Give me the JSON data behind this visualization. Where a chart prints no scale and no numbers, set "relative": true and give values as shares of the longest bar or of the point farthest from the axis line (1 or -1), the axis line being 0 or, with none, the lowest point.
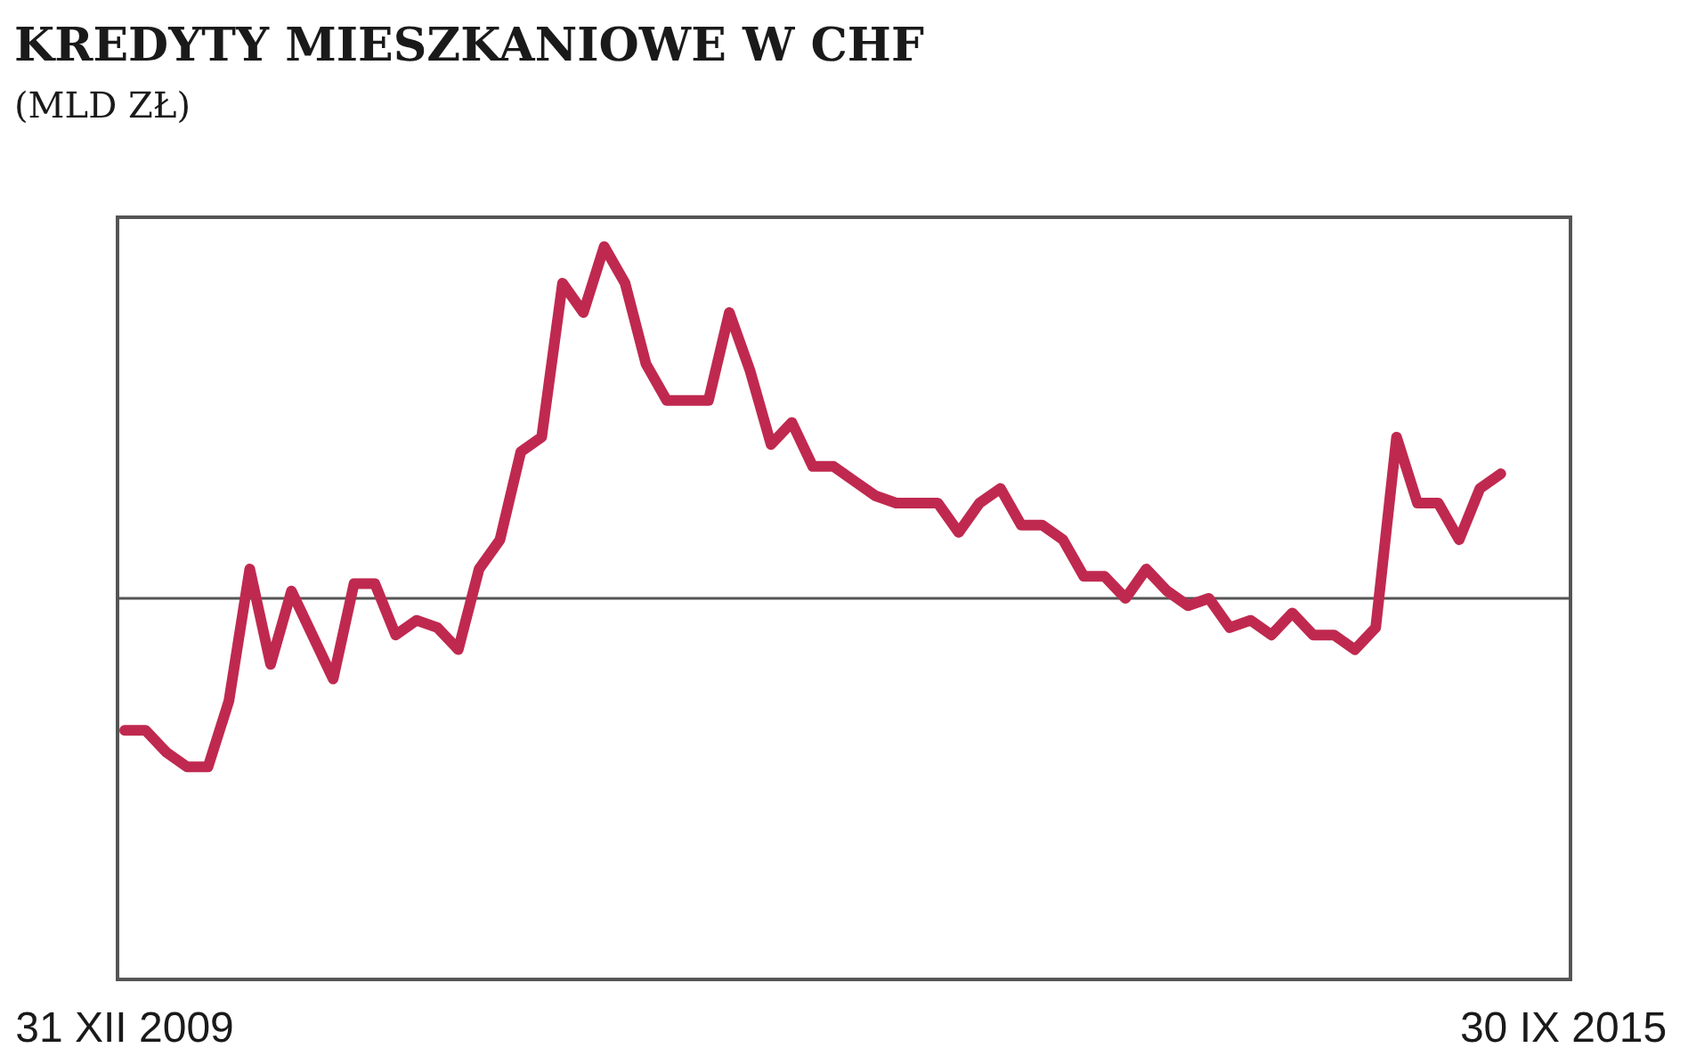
{
  "chart_data": {
    "type": "line",
    "title": "KREDYTY MIESZKANIOWE W CHF",
    "subtitle": "(MLD ZŁ)",
    "categories": [
      "31 XII 2009",
      null,
      null,
      null,
      null,
      null,
      null,
      null,
      null,
      null,
      null,
      null,
      null,
      null,
      null,
      null,
      null,
      null,
      null,
      null,
      null,
      null,
      null,
      null,
      null,
      null,
      null,
      null,
      null,
      null,
      null,
      null,
      null,
      null,
      null,
      null,
      null,
      null,
      null,
      null,
      null,
      null,
      null,
      null,
      null,
      null,
      null,
      null,
      null,
      null,
      null,
      null,
      null,
      null,
      null,
      null,
      null,
      null,
      null,
      null,
      null,
      null,
      null,
      null,
      null,
      null,
      null,
      null,
      null,
      "30 IX 2015"
    ],
    "series": [
      {
        "color": "#c0294f",
        "values": [
          0.34,
          0.34,
          0.31,
          0.29,
          0.29,
          0.38,
          0.56,
          0.43,
          0.53,
          0.47,
          0.41,
          0.54,
          0.54,
          0.47,
          0.49,
          0.48,
          0.45,
          0.56,
          0.6,
          0.72,
          0.74,
          0.95,
          0.91,
          1,
          0.95,
          0.84,
          0.79,
          0.79,
          0.79,
          0.91,
          0.83,
          0.73,
          0.76,
          0.7,
          0.7,
          0.68,
          0.66,
          0.65,
          0.65,
          0.65,
          0.61,
          0.65,
          0.67,
          0.62,
          0.62,
          0.6,
          0.55,
          0.55,
          0.52,
          0.56,
          0.53,
          0.51,
          0.52,
          0.48,
          0.49,
          0.47,
          0.5,
          0.47,
          0.47,
          0.45,
          0.48,
          0.74,
          0.65,
          0.65,
          0.6,
          0.67,
          0.69,
          null,
          null,
          null
        ]
      }
    ],
    "relative": true,
    "ref_lines": [
      {
        "axis": "y",
        "value": 0.52,
        "color": "#555555"
      }
    ]
  }
}
